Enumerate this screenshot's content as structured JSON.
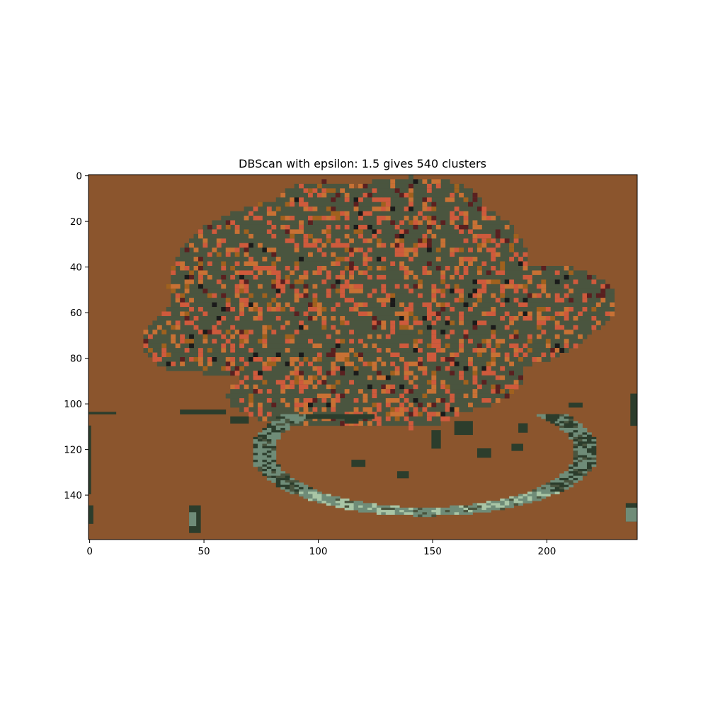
{
  "chart_data": {
    "type": "heatmap",
    "title": "DBScan with epsilon: 1.5 gives 540 clusters",
    "epsilon": 1.5,
    "n_clusters": 540,
    "xlabel": "",
    "ylabel": "",
    "image_width": 240,
    "image_height": 160,
    "xlim": [
      -0.5,
      239.5
    ],
    "ylim": [
      159.5,
      -0.5
    ],
    "x_ticks": [
      0,
      50,
      100,
      150,
      200
    ],
    "y_ticks": [
      0,
      20,
      40,
      60,
      80,
      100,
      120,
      140
    ],
    "x_tick_labels": [
      "0",
      "50",
      "100",
      "150",
      "200"
    ],
    "y_tick_labels": [
      "0",
      "20",
      "40",
      "60",
      "80",
      "100",
      "120",
      "140"
    ],
    "colors": {
      "background": "#8b552d",
      "foliage": "#4a553f",
      "foliage_alt": "#52583f",
      "highlight_red": "#cf5a3c",
      "highlight_orange": "#c87134",
      "highlight_brown": "#a0611e",
      "dark": "#1a1a1a",
      "dark_red": "#5a2020",
      "rim_light": "#a9c6a6",
      "rim_mid": "#6f8c78",
      "rim_dark": "#2c3d2c"
    }
  }
}
